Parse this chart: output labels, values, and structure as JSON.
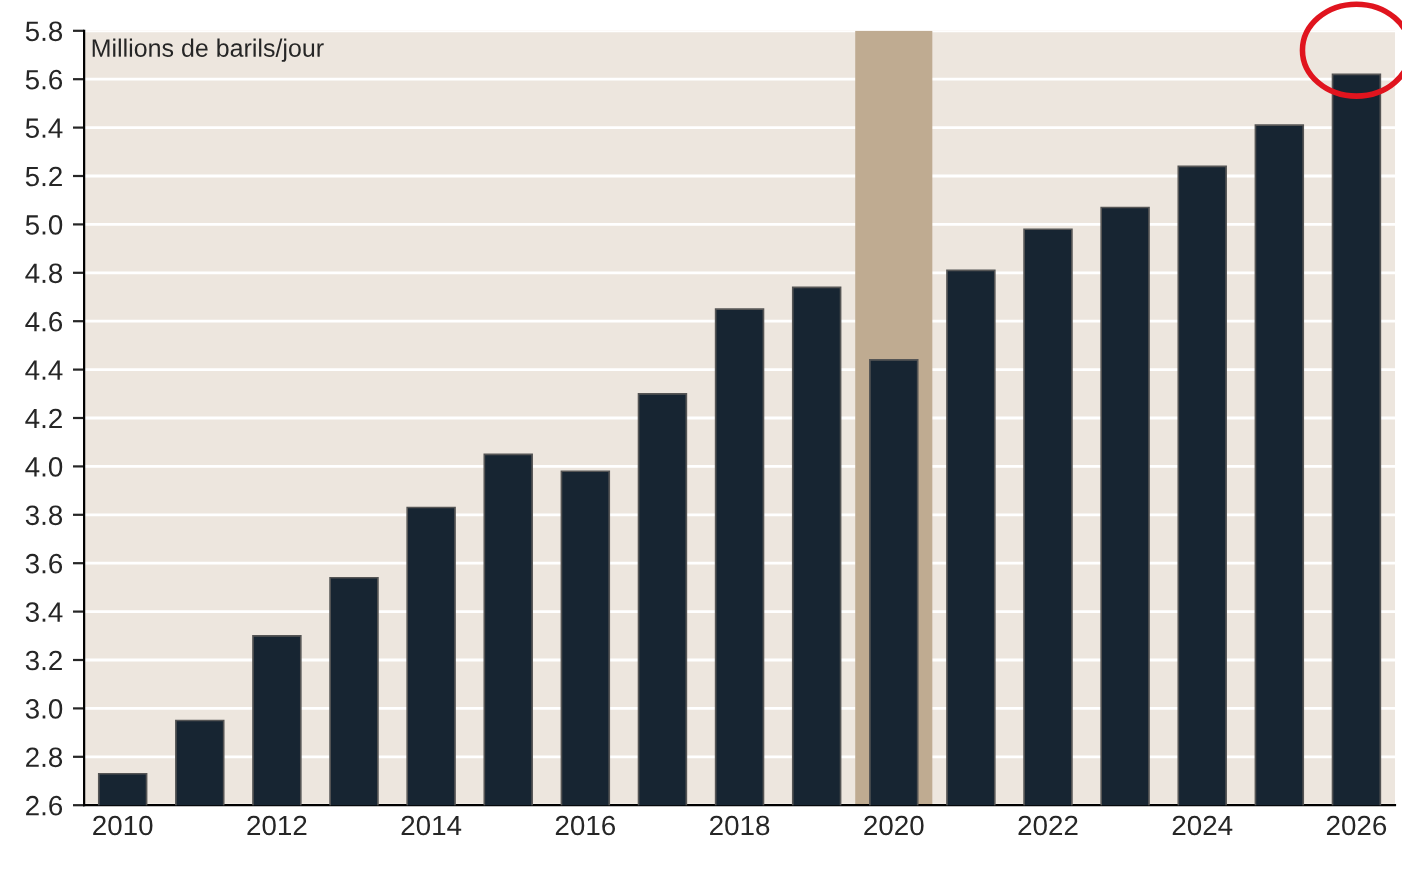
{
  "chart_data": {
    "type": "bar",
    "ylabel": "Millions de barils/jour",
    "categories": [
      "2010",
      null,
      "2012",
      null,
      "2014",
      null,
      "2016",
      null,
      "2018",
      null,
      "2020",
      null,
      "2022",
      null,
      "2024",
      null,
      "2026"
    ],
    "values": [
      2.73,
      2.95,
      3.3,
      3.54,
      3.83,
      4.05,
      3.98,
      4.3,
      4.65,
      4.74,
      4.44,
      4.81,
      4.98,
      5.07,
      5.24,
      5.41,
      5.62
    ],
    "color": "#172532",
    "ylim": [
      2.6,
      5.8
    ],
    "yticks": [
      2.6,
      2.8,
      {
        "value": 3.0,
        "label": "3.0"
      },
      3.2,
      3.4,
      3.6,
      3.8,
      {
        "value": 4.0,
        "label": "4.0"
      },
      4.2,
      4.4,
      4.6,
      4.8,
      {
        "value": 5.0,
        "label": "5.0"
      },
      5.2,
      5.4,
      5.6,
      5.8
    ],
    "bands": [
      {
        "axis": "x",
        "from": "2020",
        "to": "2020",
        "color": "#bfab91"
      }
    ],
    "grid": "y"
  }
}
